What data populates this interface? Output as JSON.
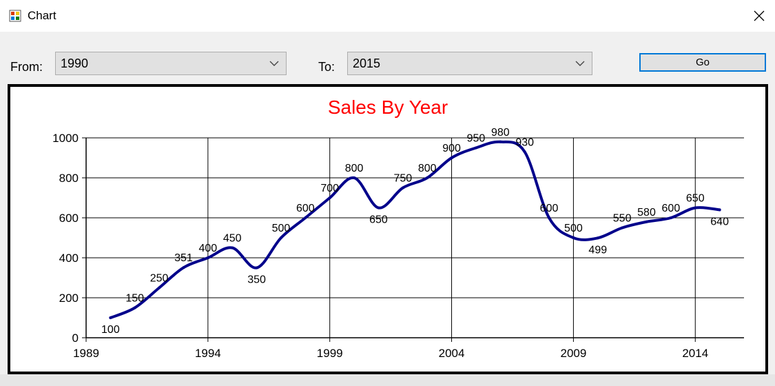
{
  "window": {
    "title": "Chart"
  },
  "form": {
    "from_label": "From:",
    "from_value": "1990",
    "to_label": "To:",
    "to_value": "2015",
    "go_label": "Go"
  },
  "chart_data": {
    "type": "line",
    "title": "Sales By Year",
    "title_color": "#ff0000",
    "line_color": "#00008b",
    "x": [
      1990,
      1991,
      1992,
      1993,
      1994,
      1995,
      1996,
      1997,
      1998,
      1999,
      2000,
      2001,
      2002,
      2003,
      2004,
      2005,
      2006,
      2007,
      2008,
      2009,
      2010,
      2011,
      2012,
      2013,
      2014,
      2015
    ],
    "y": [
      100,
      150,
      250,
      351,
      400,
      450,
      350,
      500,
      600,
      700,
      800,
      650,
      750,
      800,
      900,
      950,
      980,
      930,
      600,
      500,
      499,
      550,
      580,
      600,
      650,
      640
    ],
    "xticks": [
      1989,
      1994,
      1999,
      2004,
      2009,
      2014
    ],
    "yticks": [
      0,
      200,
      400,
      600,
      800,
      1000
    ],
    "xlim": [
      1989,
      2016
    ],
    "ylim": [
      0,
      1000
    ],
    "grid": true,
    "smooth": true
  }
}
